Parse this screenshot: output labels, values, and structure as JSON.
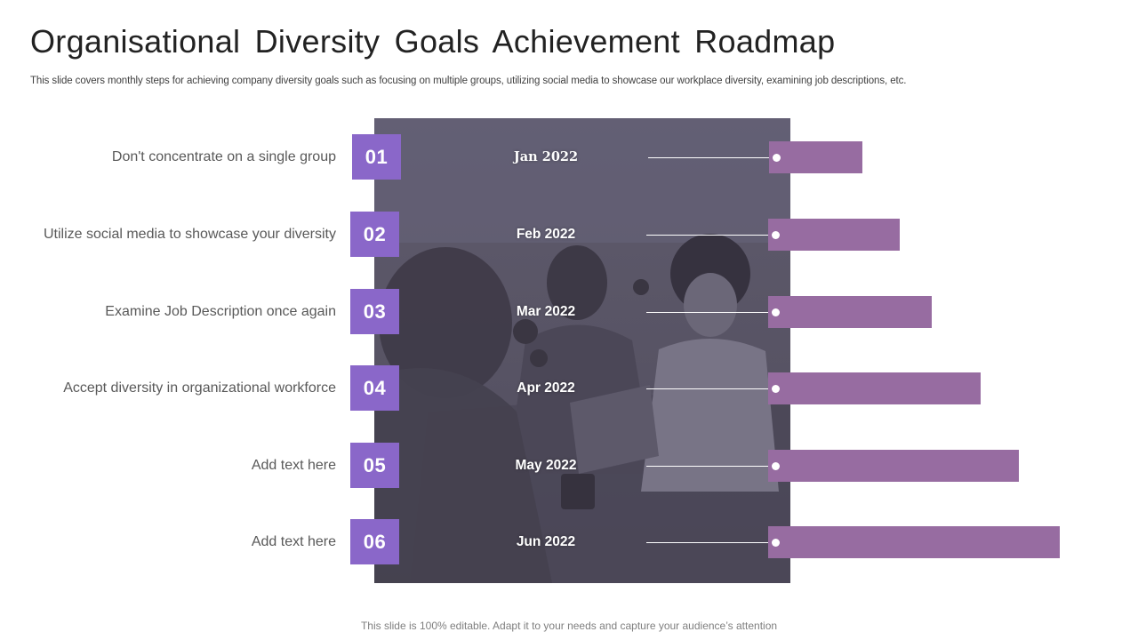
{
  "slide": {
    "title": "Organisational Diversity Goals Achievement Roadmap",
    "subtitle": "This slide covers monthly steps for achieving company diversity goals such as focusing on multiple groups, utilizing social media to showcase our workplace diversity, examining job descriptions, etc.",
    "footer": "This slide is 100% editable. Adapt it to your needs and capture your audience’s attention"
  },
  "colors": {
    "number_box": "#8a67c9",
    "bar": "#976ca1",
    "photo_overlay": "#5a5667"
  },
  "roadmap": {
    "steps": [
      {
        "number": "01",
        "label": "Don't concentrate  on a single group",
        "month": "Jan 2022",
        "progress": 0.32
      },
      {
        "number": "02",
        "label": "Utilize social media to showcase your diversity",
        "month": "Feb 2022",
        "progress": 0.45
      },
      {
        "number": "03",
        "label": "Examine  Job Description once again",
        "month": "Mar 2022",
        "progress": 0.56
      },
      {
        "number": "04",
        "label": "Accept diversity in organizational workforce",
        "month": "Apr 2022",
        "progress": 0.73
      },
      {
        "number": "05",
        "label": "Add text here",
        "month": "May 2022",
        "progress": 0.86
      },
      {
        "number": "06",
        "label": "Add text here",
        "month": "Jun 2022",
        "progress": 1.0
      }
    ]
  }
}
